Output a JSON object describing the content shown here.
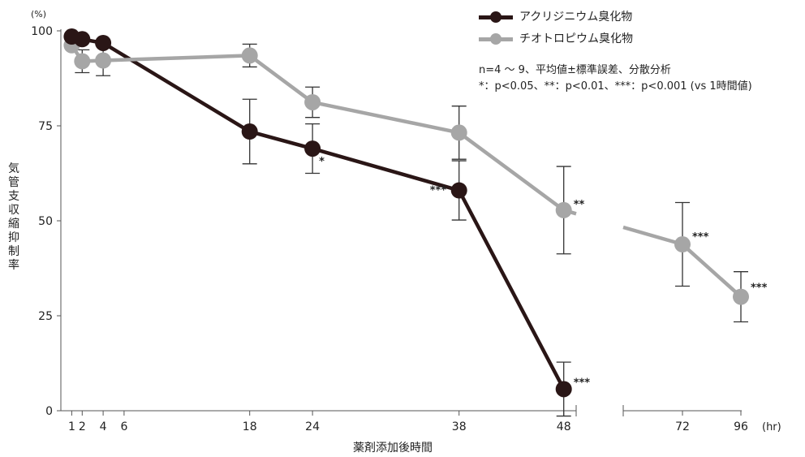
{
  "chart_data": {
    "type": "line",
    "y_unit": "(%)",
    "x_unit": "(hr)",
    "xlabel": "薬剤添加後時間",
    "ylabel": "気管支収縮抑制率",
    "ylim": [
      0,
      100
    ],
    "yticks": [
      0,
      25,
      50,
      75,
      100
    ],
    "xticks": [
      1,
      2,
      4,
      6,
      18,
      24,
      38,
      48,
      72,
      96
    ],
    "x_axis_break": [
      48,
      72
    ],
    "legend_position": "top-right",
    "series": [
      {
        "name": "アクリジニウム臭化物",
        "color": "#2a1616",
        "points": [
          {
            "x": 1,
            "y": 98.5,
            "err": null,
            "sig": ""
          },
          {
            "x": 2,
            "y": 97.8,
            "err": null,
            "sig": ""
          },
          {
            "x": 4,
            "y": 96.8,
            "err": null,
            "sig": ""
          },
          {
            "x": 18,
            "y": 73.5,
            "err": 8.5,
            "sig": ""
          },
          {
            "x": 24,
            "y": 69,
            "err": 6.5,
            "sig": "*"
          },
          {
            "x": 38,
            "y": 58,
            "err": 7.8,
            "sig": "***"
          },
          {
            "x": 48,
            "y": 5.7,
            "err": 7.1,
            "sig": "***"
          }
        ]
      },
      {
        "name": "チオトロピウム臭化物",
        "color": "#a6a6a6",
        "points": [
          {
            "x": 1,
            "y": 96.2,
            "err": null,
            "sig": ""
          },
          {
            "x": 2,
            "y": 92,
            "err": 3,
            "sig": ""
          },
          {
            "x": 4,
            "y": 92.2,
            "err": 4,
            "sig": ""
          },
          {
            "x": 18,
            "y": 93.5,
            "err": 3,
            "sig": ""
          },
          {
            "x": 24,
            "y": 81.2,
            "err": 4,
            "sig": ""
          },
          {
            "x": 38,
            "y": 73.2,
            "err": 7,
            "sig": ""
          },
          {
            "x": 48,
            "y": 52.8,
            "err": 11.5,
            "sig": "**"
          },
          {
            "x": 72,
            "y": 43.8,
            "err": 11,
            "sig": "***"
          },
          {
            "x": 96,
            "y": 30,
            "err": 6.6,
            "sig": "***"
          }
        ]
      }
    ]
  },
  "notes": {
    "line1": "n=4 ～ 9、平均値±標準誤差、分散分析",
    "line2": "*：p<0.05、**：p<0.01、***：p<0.001 (vs 1時間値)"
  },
  "legend": {
    "item1": "アクリジニウム臭化物",
    "item2": "チオトロピウム臭化物"
  }
}
